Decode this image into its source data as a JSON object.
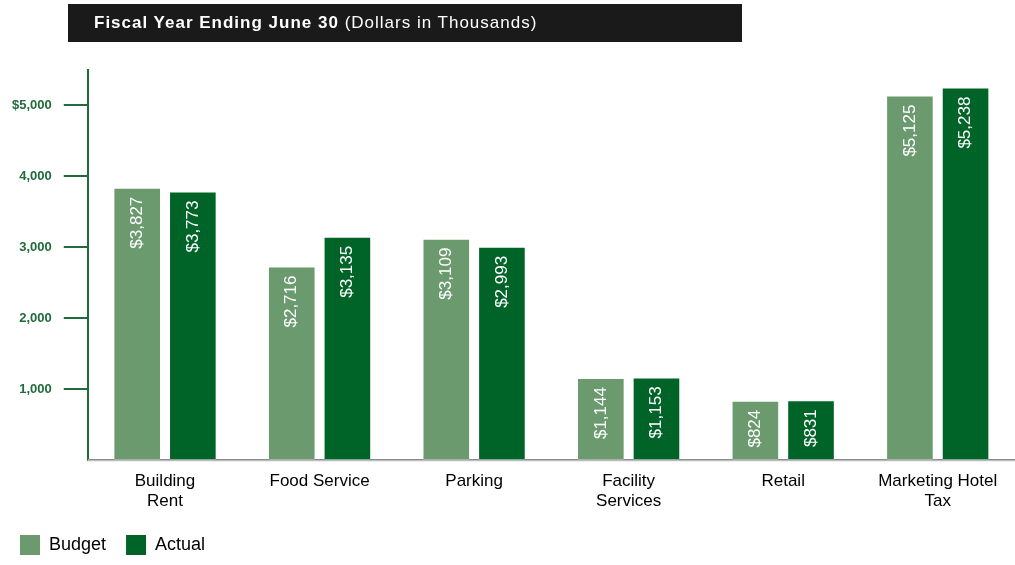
{
  "chart_data": {
    "type": "bar",
    "title": "Fiscal Year Ending June 30",
    "subtitle": "(Dollars in Thousands)",
    "categories": [
      "Building Rent",
      "Food Service",
      "Parking",
      "Facility Services",
      "Retail",
      "Marketing Hotel Tax"
    ],
    "series": [
      {
        "name": "Budget",
        "color": "#6a9a6e",
        "values": [
          3827,
          2716,
          3109,
          1144,
          824,
          5125
        ],
        "value_labels": [
          "$3,827",
          "$2,716",
          "$3,109",
          "$1,144",
          "$824",
          "$5,125"
        ]
      },
      {
        "name": "Actual",
        "color": "#006428",
        "values": [
          3773,
          3135,
          2993,
          1153,
          831,
          5238
        ],
        "value_labels": [
          "$3,773",
          "$3,135",
          "$2,993",
          "$1,153",
          "$831",
          "$5,238"
        ]
      }
    ],
    "ylim": [
      0,
      5500
    ],
    "yticks": [
      {
        "value": 1000,
        "label": "1,000"
      },
      {
        "value": 2000,
        "label": "2,000"
      },
      {
        "value": 3000,
        "label": "3,000"
      },
      {
        "value": 4000,
        "label": "4,000"
      },
      {
        "value": 5000,
        "label": "$5,000"
      }
    ],
    "grid": false,
    "legend": "bottom left"
  }
}
